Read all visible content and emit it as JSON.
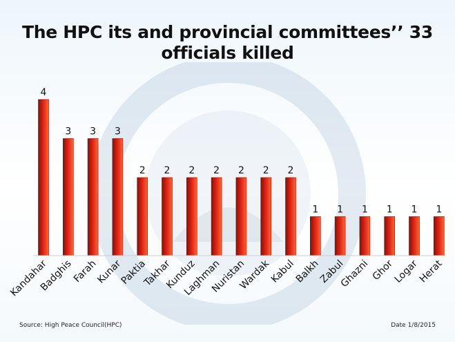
{
  "title_line1": "The HPC its and provincial committees’’ 33",
  "title_line2": "officials killed",
  "footer": {
    "source": "Source: High Peace Council(HPC)",
    "date": "Date  1/8/2015"
  },
  "colors": {
    "bar_top": "#f26a3a",
    "bar_mid": "#e02010",
    "bar_edge": "#8c0f06"
  },
  "chart_data": {
    "type": "bar",
    "title": "The HPC its and provincial committees’’ 33 officials killed",
    "xlabel": "",
    "ylabel": "",
    "categories": [
      "Kandahar",
      "Badghis",
      "Farah",
      "Kunar",
      "Paktia",
      "Takhar",
      "Kunduz",
      "Laghman",
      "Nuristan",
      "Wardak",
      "Kabul",
      "Balkh",
      "Zabul",
      "Ghazni",
      "Ghor",
      "Logar",
      "Herat"
    ],
    "values": [
      4,
      3,
      3,
      3,
      2,
      2,
      2,
      2,
      2,
      2,
      2,
      1,
      1,
      1,
      1,
      1,
      1
    ],
    "data_labels": true,
    "ylim": [
      0,
      4
    ]
  }
}
